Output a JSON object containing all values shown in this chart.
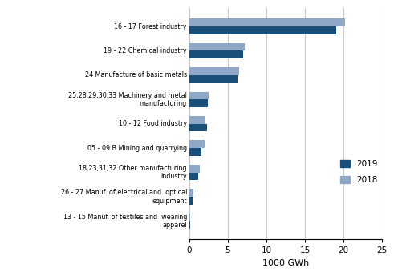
{
  "categories": [
    "16 - 17 Forest industry",
    "19 - 22 Chemical industry",
    "24 Manufacture of basic metals",
    "25,28,29,30,33 Machinery and metal\nmanufacturing",
    "10 - 12 Food industry",
    "05 - 09 B Mining and quarrying",
    "18,23,31,32 Other manufacturing\nindustry",
    "26 - 27 Manuf. of electrical and  optical\nequipment",
    "13 - 15 Manuf. of textiles and  wearing\napparel"
  ],
  "values_2019": [
    19.0,
    7.0,
    6.3,
    2.4,
    2.3,
    1.6,
    1.2,
    0.45,
    0.15
  ],
  "values_2018": [
    20.2,
    7.2,
    6.5,
    2.5,
    2.1,
    2.0,
    1.4,
    0.55,
    0.15
  ],
  "color_2019": "#1a4f7a",
  "color_2018": "#8fa8c8",
  "xlabel": "1000 GWh",
  "xlim": [
    0,
    25
  ],
  "xticks": [
    0,
    5,
    10,
    15,
    20,
    25
  ],
  "legend_labels": [
    "2019",
    "2018"
  ],
  "bar_height": 0.32,
  "gridcolor": "#c8c8c8"
}
